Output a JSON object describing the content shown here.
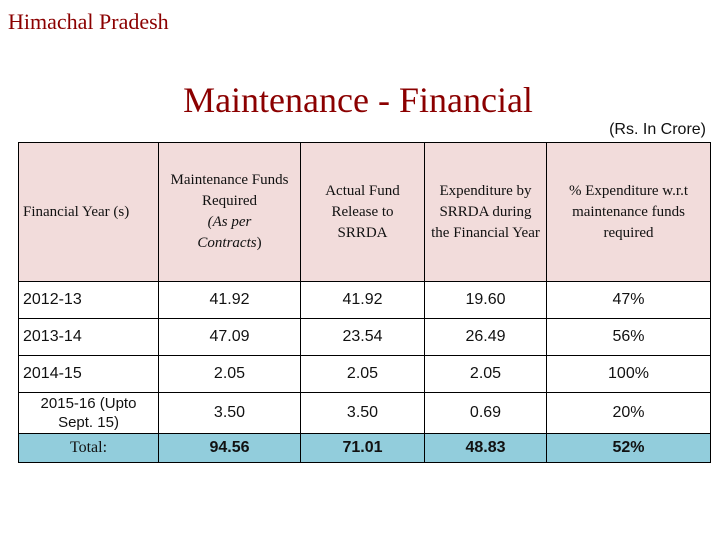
{
  "header": {
    "state": "Himachal Pradesh",
    "title": "Maintenance - Financial",
    "unit": "(Rs. In Crore)"
  },
  "table": {
    "columns": {
      "year": "Financial Year (s)",
      "required_1": "Maintenance Funds Required",
      "required_2": "(As per",
      "required_3": "Contracts",
      "required_4": ")",
      "release": "Actual Fund Release to SRRDA",
      "expenditure": "Expenditure by SRRDA during the Financial Year",
      "percent": "% Expenditure w.r.t maintenance funds required"
    },
    "rows": [
      {
        "year": "2012-13",
        "required": "41.92",
        "release": "41.92",
        "expenditure": "19.60",
        "percent": "47%"
      },
      {
        "year": "2013-14",
        "required": "47.09",
        "release": "23.54",
        "expenditure": "26.49",
        "percent": "56%"
      },
      {
        "year": "2014-15",
        "required": "2.05",
        "release": "2.05",
        "expenditure": "2.05",
        "percent": "100%"
      },
      {
        "year": "2015-16 (Upto Sept. 15)",
        "required": "3.50",
        "release": "3.50",
        "expenditure": "0.69",
        "percent": "20%"
      }
    ],
    "total": {
      "label": "Total:",
      "required": "94.56",
      "release": "71.01",
      "expenditure": "48.83",
      "percent": "52%"
    }
  }
}
